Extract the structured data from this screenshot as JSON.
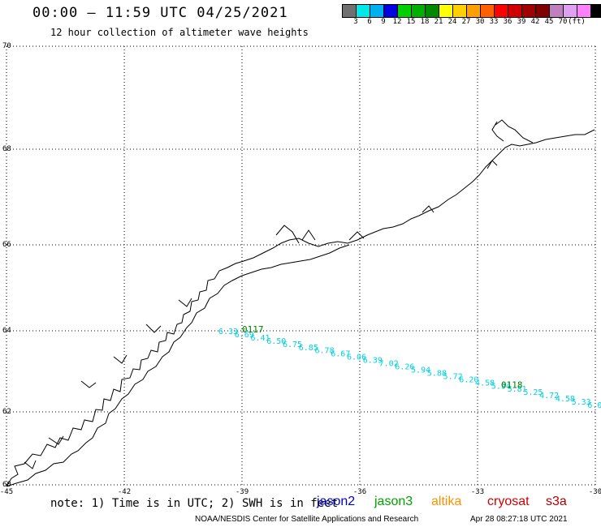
{
  "header": {
    "title": "00:00 – 11:59 UTC 04/25/2021",
    "subtitle": "12 hour collection of altimeter wave heights"
  },
  "legend": {
    "colors": [
      "#707070",
      "#00e8e8",
      "#00b0f0",
      "#0000e0",
      "#00d000",
      "#00b000",
      "#008800",
      "#ffff00",
      "#ffd000",
      "#ffa000",
      "#ff6000",
      "#ff0000",
      "#d00000",
      "#a00000",
      "#800000",
      "#c080c0",
      "#e0a0f0",
      "#ff80ff",
      "#000000"
    ],
    "labels": [
      "3",
      "6",
      "9",
      "12",
      "15",
      "18",
      "21",
      "24",
      "27",
      "30",
      "33",
      "36",
      "39",
      "42",
      "45",
      "70",
      "(ft)"
    ]
  },
  "map": {
    "lon_ticks": [
      "-45",
      "-42",
      "-39",
      "-36",
      "-33",
      "-30"
    ],
    "lat_ticks": [
      "70",
      "68",
      "66",
      "64",
      "62",
      "60"
    ],
    "track_color": "#00d0e0",
    "pass_label_color": "#008000",
    "passes": [
      {
        "label": "0117",
        "lon": -39.0,
        "lat": 63.92
      },
      {
        "label": "0118",
        "lon": -32.4,
        "lat": 62.55
      }
    ],
    "swh_values": [
      "6.33",
      "6.69",
      "6.41",
      "6.50",
      "6.75",
      "6.85",
      "6.78",
      "6.67",
      "6.06",
      "6.39",
      "7.02",
      "6.26",
      "5.94",
      "5.88",
      "5.72",
      "6.20",
      "4.58",
      "5.94",
      "5.81",
      "5.25",
      "4.72",
      "4.58",
      "5.33",
      "6.07"
    ]
  },
  "footer": {
    "note": "note: 1) Time is in UTC; 2) SWH is in feet",
    "satellites": [
      {
        "name": "jason2",
        "color": "#0000d0"
      },
      {
        "name": "jason3",
        "color": "#00a000"
      },
      {
        "name": "altika",
        "color": "#ff9000"
      },
      {
        "name": "cryosat",
        "color": "#d00000"
      },
      {
        "name": "s3a",
        "color": "#b00000"
      }
    ],
    "credit": "NOAA/NESDIS Center for Satellite Applications and Research",
    "timestamp": "Apr 28 08:27:18 UTC 2021"
  }
}
